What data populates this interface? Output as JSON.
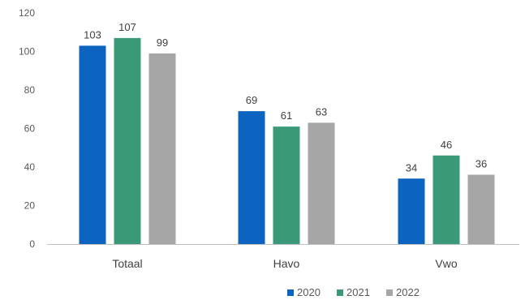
{
  "chart_data": {
    "type": "bar",
    "categories": [
      "Totaal",
      "Havo",
      "Vwo"
    ],
    "series": [
      {
        "name": "2020",
        "values": [
          103,
          69,
          34
        ]
      },
      {
        "name": "2021",
        "values": [
          107,
          61,
          46
        ]
      },
      {
        "name": "2022",
        "values": [
          99,
          63,
          36
        ]
      }
    ],
    "title": "",
    "xlabel": "",
    "ylabel": "",
    "ylim": [
      0,
      120
    ],
    "yticks": [
      0,
      20,
      40,
      60,
      80,
      100,
      120
    ],
    "grid": false,
    "legend": "bottom-right",
    "colors": [
      "#0c64c0",
      "#3a9a78",
      "#a6a6a6"
    ]
  }
}
